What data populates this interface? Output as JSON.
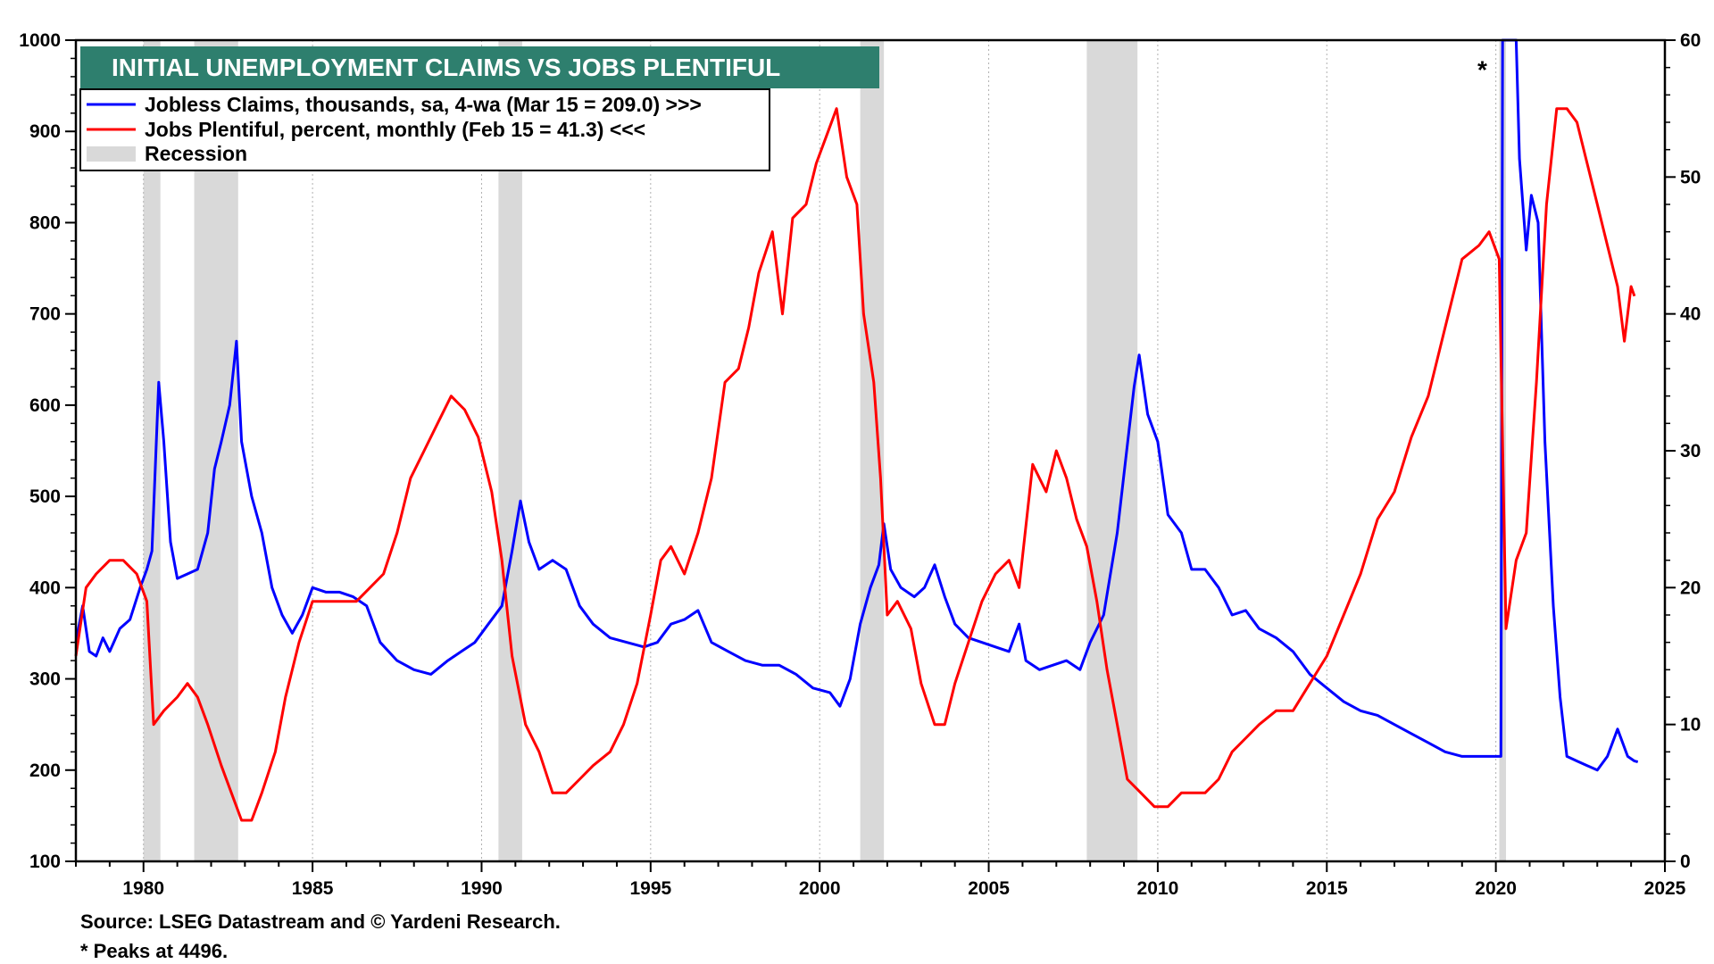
{
  "chart_data": {
    "type": "line",
    "title": "INITIAL UNEMPLOYMENT CLAIMS VS JOBS PLENTIFUL",
    "title_bg": "#2e7f6e",
    "x_range": [
      1978,
      2025
    ],
    "x_ticks": [
      1980,
      1985,
      1990,
      1995,
      2000,
      2005,
      2010,
      2015,
      2020,
      2025
    ],
    "y_left": {
      "range": [
        100,
        1000
      ],
      "ticks": [
        100,
        200,
        300,
        400,
        500,
        600,
        700,
        800,
        900,
        1000
      ]
    },
    "y_right": {
      "range": [
        0,
        60
      ],
      "ticks": [
        0,
        10,
        20,
        30,
        40,
        50,
        60
      ]
    },
    "recessions": [
      [
        1980.0,
        1980.5
      ],
      [
        1981.5,
        1982.8
      ],
      [
        1990.5,
        1991.2
      ],
      [
        2001.2,
        2001.9
      ],
      [
        2007.9,
        2009.4
      ],
      [
        2020.1,
        2020.3
      ]
    ],
    "legend": [
      {
        "label": "Jobless Claims, thousands, sa, 4-wa  (Mar 15 = 209.0) >>>",
        "color": "#0000ff",
        "kind": "line"
      },
      {
        "label": "Jobs Plentiful, percent, monthly  (Feb 15 = 41.3) <<<",
        "color": "#ff0000",
        "kind": "line"
      },
      {
        "label": "Recession",
        "color": "#d9d9d9",
        "kind": "bar"
      }
    ],
    "series": [
      {
        "name": "Jobless Claims",
        "axis": "left",
        "color": "#0000ff",
        "points": [
          [
            1978.0,
            340
          ],
          [
            1978.2,
            380
          ],
          [
            1978.4,
            330
          ],
          [
            1978.6,
            325
          ],
          [
            1978.8,
            345
          ],
          [
            1979.0,
            330
          ],
          [
            1979.3,
            355
          ],
          [
            1979.6,
            365
          ],
          [
            1979.9,
            400
          ],
          [
            1980.1,
            420
          ],
          [
            1980.25,
            440
          ],
          [
            1980.45,
            625
          ],
          [
            1980.6,
            560
          ],
          [
            1980.8,
            450
          ],
          [
            1981.0,
            410
          ],
          [
            1981.3,
            415
          ],
          [
            1981.6,
            420
          ],
          [
            1981.9,
            460
          ],
          [
            1982.1,
            530
          ],
          [
            1982.3,
            560
          ],
          [
            1982.55,
            600
          ],
          [
            1982.75,
            670
          ],
          [
            1982.9,
            560
          ],
          [
            1983.2,
            500
          ],
          [
            1983.5,
            460
          ],
          [
            1983.8,
            400
          ],
          [
            1984.1,
            370
          ],
          [
            1984.4,
            350
          ],
          [
            1984.7,
            370
          ],
          [
            1985.0,
            400
          ],
          [
            1985.4,
            395
          ],
          [
            1985.8,
            395
          ],
          [
            1986.2,
            390
          ],
          [
            1986.6,
            380
          ],
          [
            1987.0,
            340
          ],
          [
            1987.5,
            320
          ],
          [
            1988.0,
            310
          ],
          [
            1988.5,
            305
          ],
          [
            1989.0,
            320
          ],
          [
            1989.4,
            330
          ],
          [
            1989.8,
            340
          ],
          [
            1990.2,
            360
          ],
          [
            1990.6,
            380
          ],
          [
            1990.9,
            440
          ],
          [
            1991.15,
            495
          ],
          [
            1991.4,
            450
          ],
          [
            1991.7,
            420
          ],
          [
            1992.1,
            430
          ],
          [
            1992.5,
            420
          ],
          [
            1992.9,
            380
          ],
          [
            1993.3,
            360
          ],
          [
            1993.8,
            345
          ],
          [
            1994.3,
            340
          ],
          [
            1994.8,
            335
          ],
          [
            1995.2,
            340
          ],
          [
            1995.6,
            360
          ],
          [
            1996.0,
            365
          ],
          [
            1996.4,
            375
          ],
          [
            1996.8,
            340
          ],
          [
            1997.3,
            330
          ],
          [
            1997.8,
            320
          ],
          [
            1998.3,
            315
          ],
          [
            1998.8,
            315
          ],
          [
            1999.3,
            305
          ],
          [
            1999.8,
            290
          ],
          [
            2000.3,
            285
          ],
          [
            2000.6,
            270
          ],
          [
            2000.9,
            300
          ],
          [
            2001.2,
            360
          ],
          [
            2001.5,
            400
          ],
          [
            2001.75,
            425
          ],
          [
            2001.9,
            470
          ],
          [
            2002.1,
            420
          ],
          [
            2002.4,
            400
          ],
          [
            2002.8,
            390
          ],
          [
            2003.1,
            400
          ],
          [
            2003.4,
            425
          ],
          [
            2003.7,
            390
          ],
          [
            2004.0,
            360
          ],
          [
            2004.4,
            345
          ],
          [
            2004.8,
            340
          ],
          [
            2005.2,
            335
          ],
          [
            2005.6,
            330
          ],
          [
            2005.9,
            360
          ],
          [
            2006.1,
            320
          ],
          [
            2006.5,
            310
          ],
          [
            2006.9,
            315
          ],
          [
            2007.3,
            320
          ],
          [
            2007.7,
            310
          ],
          [
            2008.0,
            340
          ],
          [
            2008.4,
            370
          ],
          [
            2008.8,
            460
          ],
          [
            2009.05,
            540
          ],
          [
            2009.3,
            620
          ],
          [
            2009.45,
            655
          ],
          [
            2009.7,
            590
          ],
          [
            2010.0,
            560
          ],
          [
            2010.3,
            480
          ],
          [
            2010.7,
            460
          ],
          [
            2011.0,
            420
          ],
          [
            2011.4,
            420
          ],
          [
            2011.8,
            400
          ],
          [
            2012.2,
            370
          ],
          [
            2012.6,
            375
          ],
          [
            2013.0,
            355
          ],
          [
            2013.5,
            345
          ],
          [
            2014.0,
            330
          ],
          [
            2014.5,
            305
          ],
          [
            2015.0,
            290
          ],
          [
            2015.5,
            275
          ],
          [
            2016.0,
            265
          ],
          [
            2016.5,
            260
          ],
          [
            2017.0,
            250
          ],
          [
            2017.5,
            240
          ],
          [
            2018.0,
            230
          ],
          [
            2018.5,
            220
          ],
          [
            2019.0,
            215
          ],
          [
            2019.5,
            215
          ],
          [
            2020.0,
            215
          ],
          [
            2020.15,
            215
          ],
          [
            2020.2,
            1000
          ],
          [
            2020.6,
            1000
          ],
          [
            2020.7,
            870
          ],
          [
            2020.9,
            770
          ],
          [
            2021.05,
            830
          ],
          [
            2021.25,
            800
          ],
          [
            2021.45,
            560
          ],
          [
            2021.7,
            380
          ],
          [
            2021.9,
            280
          ],
          [
            2022.1,
            215
          ],
          [
            2022.4,
            210
          ],
          [
            2022.7,
            205
          ],
          [
            2023.0,
            200
          ],
          [
            2023.3,
            215
          ],
          [
            2023.6,
            245
          ],
          [
            2023.9,
            215
          ],
          [
            2024.1,
            210
          ],
          [
            2024.2,
            209
          ]
        ]
      },
      {
        "name": "Jobs Plentiful",
        "axis": "right",
        "color": "#ff0000",
        "points": [
          [
            1978.0,
            15
          ],
          [
            1978.3,
            20
          ],
          [
            1978.6,
            21
          ],
          [
            1979.0,
            22
          ],
          [
            1979.4,
            22
          ],
          [
            1979.8,
            21
          ],
          [
            1980.1,
            19
          ],
          [
            1980.3,
            10
          ],
          [
            1980.6,
            11
          ],
          [
            1981.0,
            12
          ],
          [
            1981.3,
            13
          ],
          [
            1981.6,
            12
          ],
          [
            1981.9,
            10
          ],
          [
            1982.3,
            7
          ],
          [
            1982.6,
            5
          ],
          [
            1982.9,
            3
          ],
          [
            1983.2,
            3
          ],
          [
            1983.5,
            5
          ],
          [
            1983.9,
            8
          ],
          [
            1984.2,
            12
          ],
          [
            1984.6,
            16
          ],
          [
            1985.0,
            19
          ],
          [
            1985.5,
            19
          ],
          [
            1985.9,
            19
          ],
          [
            1986.3,
            19
          ],
          [
            1986.7,
            20
          ],
          [
            1987.1,
            21
          ],
          [
            1987.5,
            24
          ],
          [
            1987.9,
            28
          ],
          [
            1988.3,
            30
          ],
          [
            1988.7,
            32
          ],
          [
            1989.1,
            34
          ],
          [
            1989.5,
            33
          ],
          [
            1989.9,
            31
          ],
          [
            1990.3,
            27
          ],
          [
            1990.6,
            22
          ],
          [
            1990.9,
            15
          ],
          [
            1991.3,
            10
          ],
          [
            1991.7,
            8
          ],
          [
            1992.1,
            5
          ],
          [
            1992.5,
            5
          ],
          [
            1992.9,
            6
          ],
          [
            1993.3,
            7
          ],
          [
            1993.8,
            8
          ],
          [
            1994.2,
            10
          ],
          [
            1994.6,
            13
          ],
          [
            1995.0,
            18
          ],
          [
            1995.3,
            22
          ],
          [
            1995.6,
            23
          ],
          [
            1996.0,
            21
          ],
          [
            1996.4,
            24
          ],
          [
            1996.8,
            28
          ],
          [
            1997.2,
            35
          ],
          [
            1997.6,
            36
          ],
          [
            1997.9,
            39
          ],
          [
            1998.2,
            43
          ],
          [
            1998.6,
            46
          ],
          [
            1998.9,
            40
          ],
          [
            1999.2,
            47
          ],
          [
            1999.6,
            48
          ],
          [
            1999.9,
            51
          ],
          [
            2000.2,
            53
          ],
          [
            2000.5,
            55
          ],
          [
            2000.8,
            50
          ],
          [
            2001.1,
            48
          ],
          [
            2001.3,
            40
          ],
          [
            2001.6,
            35
          ],
          [
            2001.8,
            28
          ],
          [
            2002.0,
            18
          ],
          [
            2002.3,
            19
          ],
          [
            2002.7,
            17
          ],
          [
            2003.0,
            13
          ],
          [
            2003.4,
            10
          ],
          [
            2003.7,
            10
          ],
          [
            2004.0,
            13
          ],
          [
            2004.4,
            16
          ],
          [
            2004.8,
            19
          ],
          [
            2005.2,
            21
          ],
          [
            2005.6,
            22
          ],
          [
            2005.9,
            20
          ],
          [
            2006.3,
            29
          ],
          [
            2006.7,
            27
          ],
          [
            2007.0,
            30
          ],
          [
            2007.3,
            28
          ],
          [
            2007.6,
            25
          ],
          [
            2007.9,
            23
          ],
          [
            2008.2,
            19
          ],
          [
            2008.5,
            14
          ],
          [
            2008.8,
            10
          ],
          [
            2009.1,
            6
          ],
          [
            2009.5,
            5
          ],
          [
            2009.9,
            4
          ],
          [
            2010.3,
            4
          ],
          [
            2010.7,
            5
          ],
          [
            2011.0,
            5
          ],
          [
            2011.4,
            5
          ],
          [
            2011.8,
            6
          ],
          [
            2012.2,
            8
          ],
          [
            2012.6,
            9
          ],
          [
            2013.0,
            10
          ],
          [
            2013.5,
            11
          ],
          [
            2014.0,
            11
          ],
          [
            2014.5,
            13
          ],
          [
            2015.0,
            15
          ],
          [
            2015.5,
            18
          ],
          [
            2016.0,
            21
          ],
          [
            2016.5,
            25
          ],
          [
            2017.0,
            27
          ],
          [
            2017.5,
            31
          ],
          [
            2018.0,
            34
          ],
          [
            2018.5,
            39
          ],
          [
            2019.0,
            44
          ],
          [
            2019.5,
            45
          ],
          [
            2019.8,
            46
          ],
          [
            2020.1,
            44
          ],
          [
            2020.3,
            17
          ],
          [
            2020.6,
            22
          ],
          [
            2020.9,
            24
          ],
          [
            2021.2,
            35
          ],
          [
            2021.5,
            48
          ],
          [
            2021.8,
            55
          ],
          [
            2022.1,
            55
          ],
          [
            2022.4,
            54
          ],
          [
            2022.7,
            51
          ],
          [
            2023.0,
            48
          ],
          [
            2023.3,
            45
          ],
          [
            2023.6,
            42
          ],
          [
            2023.8,
            38
          ],
          [
            2024.0,
            42
          ],
          [
            2024.1,
            41.3
          ]
        ]
      }
    ],
    "annotations": [
      {
        "text": "*",
        "x": 2019.6,
        "y_left": 970
      }
    ],
    "sources": [
      "Source: LSEG Datastream and © Yardeni Research.",
      "* Peaks at 4496."
    ]
  }
}
